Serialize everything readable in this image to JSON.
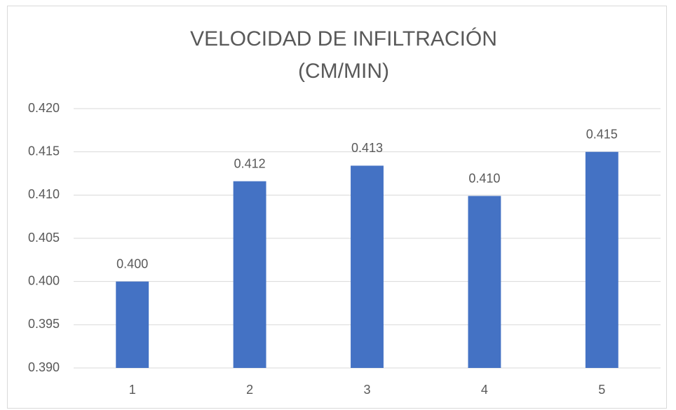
{
  "chart_data": {
    "type": "bar",
    "title": [
      "VELOCIDAD  DE INFILTRACIÓN",
      "(CM/MIN)"
    ],
    "categories": [
      "1",
      "2",
      "3",
      "4",
      "5"
    ],
    "values": [
      0.4,
      0.4116,
      0.4134,
      0.4099,
      0.415
    ],
    "value_labels": [
      "0.400",
      "0.412",
      "0.413",
      "0.410",
      "0.415"
    ],
    "color": "#4472c4",
    "ylim": [
      0.39,
      0.42
    ],
    "yticks": [
      {
        "value": 0.39,
        "label": "0.390"
      },
      {
        "value": 0.395,
        "label": "0.395"
      },
      {
        "value": 0.4,
        "label": "0.400"
      },
      {
        "value": 0.405,
        "label": "0.405"
      },
      {
        "value": 0.41,
        "label": "0.410"
      },
      {
        "value": 0.415,
        "label": "0.415"
      },
      {
        "value": 0.42,
        "label": "0.420"
      }
    ],
    "grid": true
  }
}
